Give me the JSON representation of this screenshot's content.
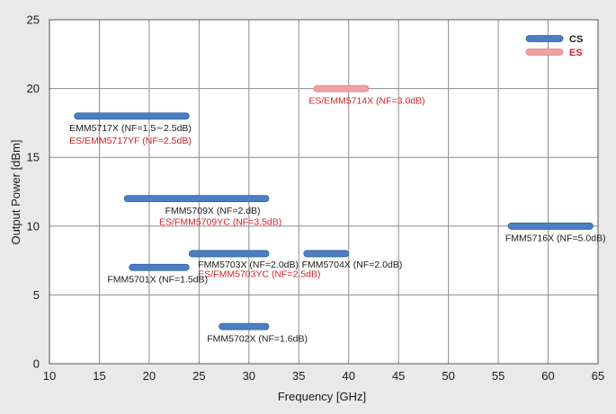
{
  "chart_data": {
    "type": "range-bar",
    "xlabel": "Frequency  [GHz]",
    "ylabel": "Output Power  [dBm]",
    "xlim": [
      10,
      65
    ],
    "ylim": [
      0,
      25
    ],
    "xticks": [
      "10",
      "15",
      "20",
      "25",
      "30",
      "35",
      "40",
      "45",
      "50",
      "55",
      "60",
      "65"
    ],
    "yticks": [
      "0",
      "5",
      "10",
      "15",
      "20",
      "25"
    ],
    "grid": true,
    "legend_position": "top-right",
    "legend": [
      {
        "name": "CS",
        "color": "#4a7fc4"
      },
      {
        "name": "ES",
        "color": "#f0a0a4"
      }
    ],
    "series": [
      {
        "name": "CS",
        "bars": [
          {
            "f_start": 12.5,
            "f_end": 24.0,
            "power": 18.0
          },
          {
            "f_start": 17.5,
            "f_end": 32.0,
            "power": 12.0
          },
          {
            "f_start": 24.0,
            "f_end": 32.0,
            "power": 8.0
          },
          {
            "f_start": 35.5,
            "f_end": 40.0,
            "power": 8.0
          },
          {
            "f_start": 18.0,
            "f_end": 24.0,
            "power": 7.0
          },
          {
            "f_start": 27.0,
            "f_end": 32.0,
            "power": 2.7
          },
          {
            "f_start": 56.0,
            "f_end": 64.5,
            "power": 10.0
          }
        ]
      },
      {
        "name": "ES",
        "bars": [
          {
            "f_start": 36.5,
            "f_end": 42.0,
            "power": 20.0
          }
        ]
      }
    ],
    "annotations": [
      {
        "text": "EMM5717X (NF=1.5∼2.5dB)",
        "series": "CS",
        "x": 12.0,
        "y": 16.9
      },
      {
        "text": "ES/EMM5717YF (NF=2.5dB)",
        "series": "ES",
        "x": 12.0,
        "y": 16.0
      },
      {
        "text": "ES/EMM5714X (NF=3.0dB)",
        "series": "ES",
        "x": 36.0,
        "y": 18.9
      },
      {
        "text": "FMM5709X (NF=2.dB)",
        "series": "CS",
        "x": 21.6,
        "y": 10.9
      },
      {
        "text": "ES/FMM5709YC (NF=3.5dB)",
        "series": "ES",
        "x": 21.0,
        "y": 10.1
      },
      {
        "text": "FMM5703X (NF=2.0dB)",
        "series": "CS",
        "x": 24.9,
        "y": 7.0
      },
      {
        "text": "ES/FMM5703YC (NF=2.5dB)",
        "series": "ES",
        "x": 24.9,
        "y": 6.3
      },
      {
        "text": "FMM5704X (NF=2.0dB)",
        "series": "CS",
        "x": 35.3,
        "y": 7.0
      },
      {
        "text": "FMM5701X (NF=1.5dB)",
        "series": "CS",
        "x": 15.8,
        "y": 5.9
      },
      {
        "text": "FMM5702X (NF=1.6dB)",
        "series": "CS",
        "x": 25.8,
        "y": 1.6
      },
      {
        "text": "FMM5716X (NF=5.0dB)",
        "series": "CS",
        "x": 55.7,
        "y": 8.9
      }
    ]
  }
}
